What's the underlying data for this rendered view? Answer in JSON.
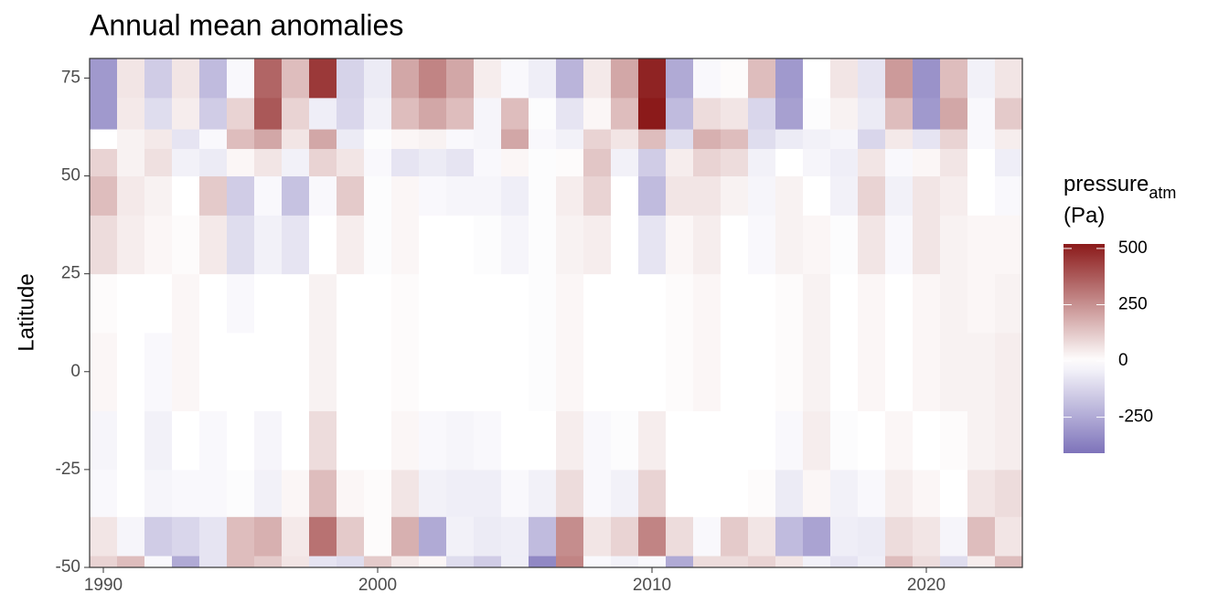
{
  "chart_data": {
    "type": "heatmap",
    "title": "Annual mean anomalies",
    "y_label": "Latitude",
    "x": [
      1990,
      1991,
      1992,
      1993,
      1994,
      1995,
      1996,
      1997,
      1998,
      1999,
      2000,
      2001,
      2002,
      2003,
      2004,
      2005,
      2006,
      2007,
      2008,
      2009,
      2010,
      2011,
      2012,
      2013,
      2014,
      2015,
      2016,
      2017,
      2018,
      2019,
      2020,
      2021,
      2022,
      2023
    ],
    "lat_bins": [
      -50,
      -47,
      -37,
      -25,
      -10,
      10,
      25,
      40,
      50,
      57,
      62,
      70,
      80
    ],
    "z": [
      [
        100,
        60,
        -20,
        -30,
        20,
        10,
        80,
        150,
        100,
        0,
        -300,
        -300
      ],
      [
        150,
        -30,
        0,
        0,
        0,
        0,
        40,
        50,
        30,
        30,
        50,
        60
      ],
      [
        -20,
        -150,
        -30,
        -40,
        -20,
        0,
        20,
        30,
        70,
        50,
        -100,
        -150
      ],
      [
        -250,
        -120,
        -20,
        0,
        20,
        20,
        10,
        0,
        -40,
        -80,
        40,
        60
      ],
      [
        -80,
        -80,
        -20,
        -20,
        0,
        0,
        50,
        120,
        -60,
        -20,
        -150,
        -200
      ],
      [
        150,
        150,
        -10,
        0,
        0,
        -20,
        -100,
        -150,
        20,
        150,
        100,
        -20
      ],
      [
        120,
        180,
        -40,
        -30,
        0,
        0,
        -40,
        -20,
        60,
        200,
        380,
        350
      ],
      [
        60,
        50,
        20,
        0,
        0,
        0,
        -80,
        -180,
        -40,
        60,
        100,
        150
      ],
      [
        -80,
        320,
        150,
        80,
        30,
        30,
        0,
        -20,
        100,
        200,
        -50,
        450
      ],
      [
        -100,
        120,
        20,
        0,
        0,
        0,
        40,
        120,
        60,
        -60,
        -120,
        -130
      ],
      [
        120,
        10,
        10,
        0,
        0,
        0,
        -10,
        -10,
        -20,
        -10,
        -40,
        -60
      ],
      [
        50,
        180,
        60,
        20,
        10,
        10,
        20,
        20,
        -80,
        20,
        150,
        200
      ],
      [
        20,
        -250,
        -40,
        -20,
        0,
        0,
        0,
        -20,
        -60,
        30,
        200,
        280
      ],
      [
        -100,
        -40,
        -50,
        -30,
        0,
        0,
        0,
        -30,
        -80,
        -20,
        150,
        200
      ],
      [
        -150,
        -60,
        -50,
        -20,
        0,
        0,
        -10,
        -30,
        -20,
        -30,
        -30,
        40
      ],
      [
        -50,
        -50,
        -20,
        0,
        0,
        0,
        -30,
        -50,
        20,
        200,
        150,
        -20
      ],
      [
        -350,
        -200,
        -40,
        0,
        -10,
        -10,
        -10,
        -10,
        -10,
        -20,
        -10,
        -50
      ],
      [
        280,
        260,
        80,
        40,
        20,
        20,
        30,
        40,
        10,
        -40,
        -80,
        -220
      ],
      [
        -20,
        60,
        -20,
        -20,
        0,
        0,
        40,
        100,
        130,
        100,
        20,
        50
      ],
      [
        -40,
        100,
        -40,
        -10,
        0,
        0,
        0,
        0,
        -40,
        60,
        150,
        200
      ],
      [
        -20,
        280,
        100,
        40,
        0,
        0,
        -80,
        -200,
        -150,
        150,
        520,
        500
      ],
      [
        -250,
        80,
        0,
        0,
        10,
        10,
        20,
        60,
        40,
        -100,
        -200,
        -250
      ],
      [
        80,
        -20,
        0,
        0,
        20,
        20,
        40,
        60,
        100,
        180,
        80,
        -20
      ],
      [
        80,
        120,
        0,
        0,
        0,
        0,
        0,
        30,
        80,
        150,
        60,
        10
      ],
      [
        100,
        60,
        10,
        0,
        0,
        0,
        -20,
        -30,
        -40,
        -100,
        -120,
        150
      ],
      [
        60,
        -200,
        -60,
        -20,
        10,
        10,
        30,
        30,
        0,
        -60,
        -280,
        -300
      ],
      [
        -40,
        -270,
        20,
        40,
        30,
        30,
        20,
        0,
        -30,
        -40,
        -10,
        0
      ],
      [
        -80,
        -50,
        -40,
        -10,
        0,
        0,
        -10,
        -40,
        -50,
        -30,
        30,
        60
      ],
      [
        -50,
        -60,
        -20,
        0,
        20,
        20,
        60,
        100,
        60,
        -120,
        -60,
        -80
      ],
      [
        150,
        80,
        40,
        20,
        0,
        0,
        -20,
        -40,
        -20,
        50,
        150,
        230
      ],
      [
        80,
        60,
        20,
        0,
        20,
        20,
        60,
        60,
        20,
        -80,
        -300,
        -320
      ],
      [
        -100,
        -30,
        0,
        10,
        30,
        30,
        30,
        40,
        60,
        100,
        200,
        150
      ],
      [
        40,
        150,
        60,
        30,
        30,
        20,
        20,
        0,
        0,
        -20,
        -20,
        -40
      ],
      [
        150,
        60,
        80,
        40,
        40,
        30,
        20,
        -20,
        -50,
        40,
        120,
        60
      ]
    ],
    "xlim": [
      1989.5,
      2023.5
    ],
    "xticks": [
      1990,
      2000,
      2010,
      2020
    ],
    "ylim": [
      -50,
      80
    ],
    "yticks": [
      -50,
      -25,
      0,
      25,
      50,
      75
    ],
    "legend_title": "pressure",
    "legend_subscript": "atm",
    "legend_unit": "(Pa)",
    "colorlim": [
      -410,
      520
    ],
    "colorbar_ticks": [
      -250,
      0,
      250,
      500
    ],
    "colors": {
      "low": "#5b4ea8",
      "mid": "#ffffff",
      "high": "#8b1a1a"
    }
  }
}
